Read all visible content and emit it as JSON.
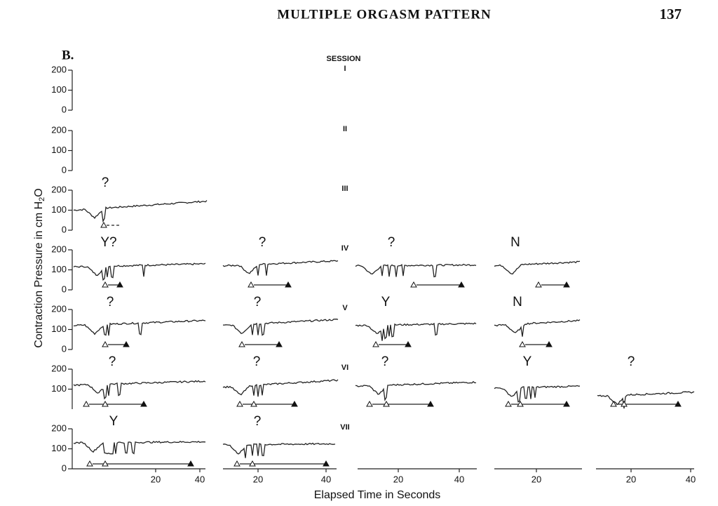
{
  "header": {
    "title": "MULTIPLE ORGASM PATTERN",
    "page": "137"
  },
  "figure": {
    "panel": "B.",
    "session_label": "SESSION",
    "y_axis_label": {
      "text": "Contraction Pressure in cm H",
      "subscript": "2",
      "suffix": "O"
    },
    "x_axis_label": "Elapsed Time in Seconds",
    "rows": [
      {
        "session": "I",
        "ticks": [
          "200",
          "100",
          "0"
        ],
        "annotations": []
      },
      {
        "session": "II",
        "ticks": [
          "200",
          "100",
          "0"
        ],
        "annotations": []
      },
      {
        "session": "III",
        "ticks": [
          "200",
          "100",
          "0"
        ],
        "annotations": [
          "?"
        ]
      },
      {
        "session": "IV",
        "ticks": [
          "200",
          "100",
          "0"
        ],
        "annotations": [
          "Y?",
          "?",
          "?",
          "N"
        ]
      },
      {
        "session": "V",
        "ticks": [
          "200",
          "100",
          "0"
        ],
        "annotations": [
          "?",
          "?",
          "Y",
          "N"
        ]
      },
      {
        "session": "VI",
        "ticks": [
          "200",
          "100"
        ],
        "annotations": [
          "?",
          "?",
          "?",
          "Y",
          "?"
        ]
      },
      {
        "session": "VII",
        "ticks": [
          "200",
          "100",
          "0"
        ],
        "annotations": [
          "Y",
          "?"
        ]
      }
    ],
    "x_ticks": [
      [
        "20",
        "40"
      ],
      [
        "20",
        "40"
      ],
      [
        "20",
        "40"
      ],
      [
        "20"
      ],
      [
        "20",
        "40"
      ]
    ]
  }
}
